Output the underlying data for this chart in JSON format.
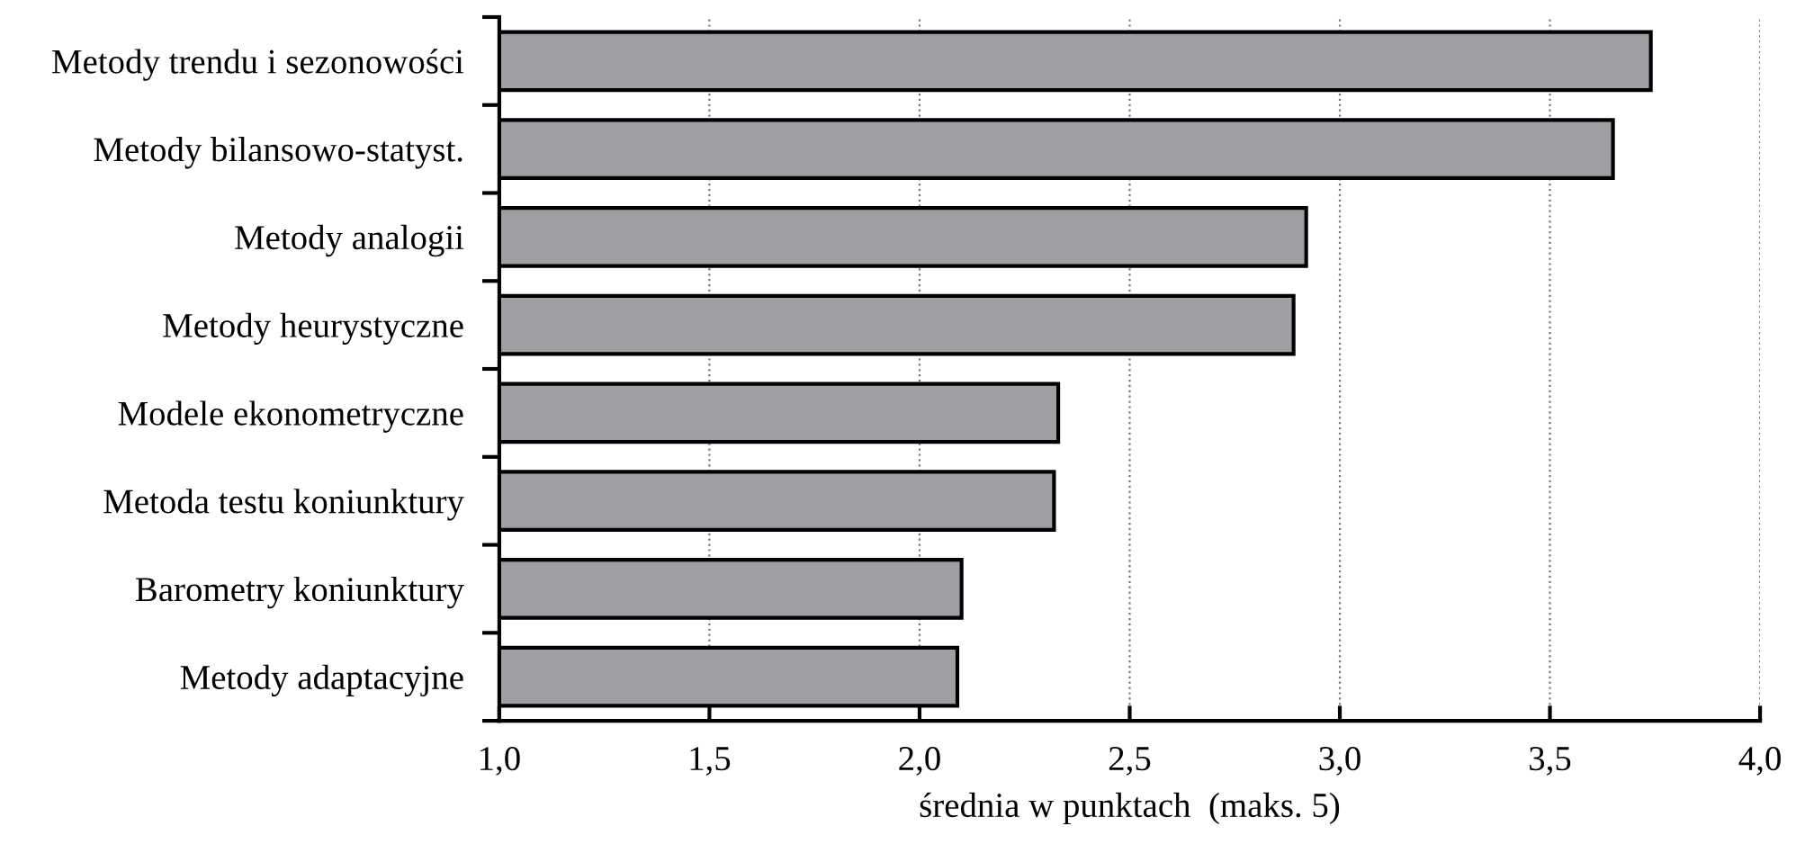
{
  "chart_data": {
    "type": "bar",
    "orientation": "horizontal",
    "xlabel": "średnia w punktach  (maks. 5)",
    "categories": [
      "Metody trendu i sezonowości",
      "Metody bilansowo-statyst.",
      "Metody analogii",
      "Metody heurystyczne",
      "Modele ekonometryczne",
      "Metoda testu koniunktury",
      "Barometry koniunktury",
      "Metody adaptacyjne"
    ],
    "values": [
      3.74,
      3.65,
      2.92,
      2.89,
      2.33,
      2.32,
      2.1,
      2.09
    ],
    "color": "#9d9fa3",
    "xlim": [
      1.0,
      4.0
    ],
    "xticks": [
      {
        "value": 1.0,
        "label": "1,0"
      },
      {
        "value": 1.5,
        "label": "1,5"
      },
      {
        "value": 2.0,
        "label": "2,0"
      },
      {
        "value": 2.5,
        "label": "2,5"
      },
      {
        "value": 3.0,
        "label": "3,0"
      },
      {
        "value": 3.5,
        "label": "3,5"
      },
      {
        "value": 4.0,
        "label": "4,0"
      }
    ],
    "grid": "x"
  }
}
